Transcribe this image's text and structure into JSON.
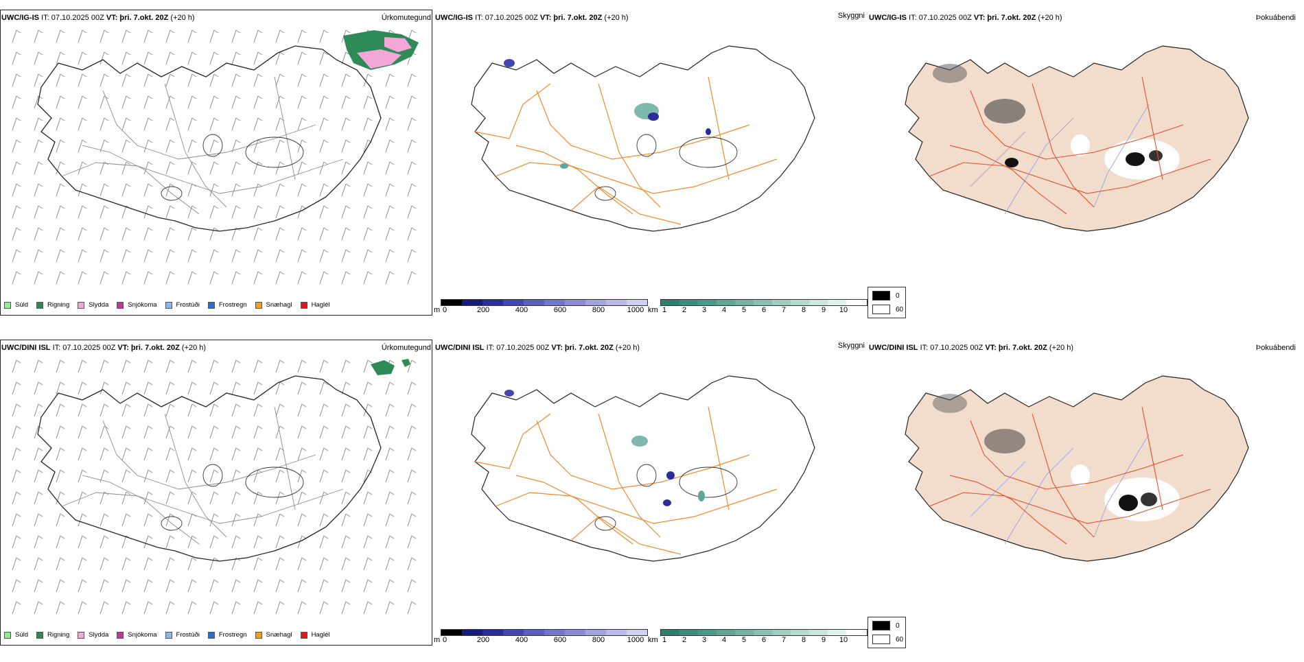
{
  "rows": [
    {
      "model_label": "UWC/IG-IS",
      "it_text": "IT: 07.10.2025 00Z",
      "vt_label": "VT:",
      "vt_value": "þri. 7.okt. 20Z",
      "lead": "(+20 h)"
    },
    {
      "model_label": "UWC/DINI ISL",
      "it_text": "IT: 07.10.2025 00Z",
      "vt_label": "VT:",
      "vt_value": "þri. 7.okt. 20Z",
      "lead": "(+20 h)"
    }
  ],
  "panels": {
    "precip_title": "Úrkomutegund",
    "cloud_title": "Skyggni",
    "vis_title": "Þokuábendi"
  },
  "precip_legend": [
    {
      "label": "Súld",
      "color": "#90ee90"
    },
    {
      "label": "Rigning",
      "color": "#2e8b57"
    },
    {
      "label": "Slydda",
      "color": "#f3a6d8"
    },
    {
      "label": "Snjókoma",
      "color": "#c0399a"
    },
    {
      "label": "Frostúði",
      "color": "#8ab8f0"
    },
    {
      "label": "Frostregn",
      "color": "#2c6fc9"
    },
    {
      "label": "Snæhagl",
      "color": "#f0a020"
    },
    {
      "label": "Haglél",
      "color": "#e01818"
    }
  ],
  "cloud_base_bar": {
    "unit": "m",
    "ticks": [
      "0",
      "200",
      "400",
      "600",
      "800",
      "1000"
    ],
    "colors": [
      "#000000",
      "#1a1a7a",
      "#2b2b9a",
      "#4545b0",
      "#5d5dbe",
      "#7575c9",
      "#8c8cd4",
      "#a3a3de",
      "#babae8",
      "#d0d0f1"
    ]
  },
  "visibility_bar": {
    "unit": "km",
    "ticks": [
      "1",
      "2",
      "3",
      "4",
      "5",
      "6",
      "7",
      "8",
      "9",
      "10"
    ],
    "colors": [
      "#2f7d6e",
      "#3f8a7b",
      "#4f9788",
      "#63a496",
      "#77b1a4",
      "#8bbfb3",
      "#a0ccc2",
      "#b6d9d0",
      "#cce6df",
      "#e2f2ee",
      "#ffffff"
    ]
  },
  "fog_legend": {
    "min_label": "0",
    "max_label": "60",
    "min_color": "#000000",
    "max_color": "#ffffff"
  },
  "colors": {
    "coast": "#222222",
    "roads_gray": "#888888",
    "roads_orange": "#f08a2c",
    "roads_red": "#e2502a",
    "land_fill": "#f2dccb",
    "rivers": "#8a9cf0"
  }
}
